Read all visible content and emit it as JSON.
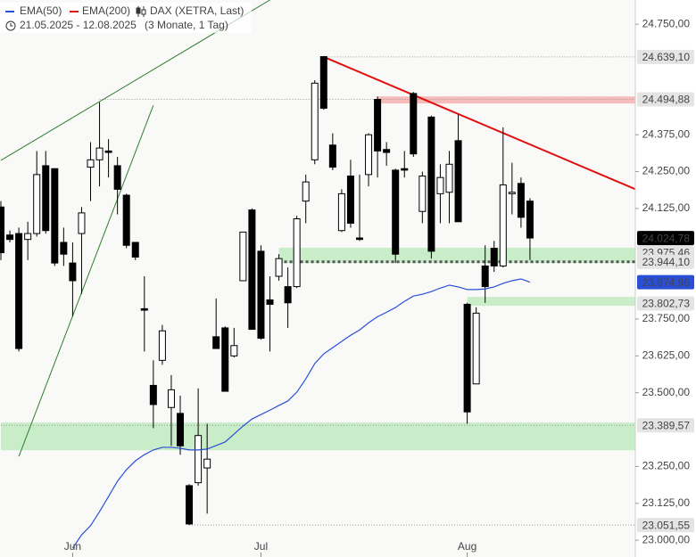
{
  "chart_data": {
    "type": "candlestick",
    "instrument": "DAX (XETRA, Last)",
    "period": "21.05.2025 - 12.08.2025",
    "range": "(3 Monate, 1 Tag)",
    "indicators": [
      {
        "name": "EMA(50)",
        "color": "#2a4fd6"
      },
      {
        "name": "EMA(200)",
        "color": "#e01010"
      }
    ],
    "categories": [
      null,
      null,
      null,
      null,
      null,
      null,
      null,
      null,
      "Jun",
      null,
      null,
      null,
      null,
      null,
      null,
      null,
      null,
      null,
      null,
      null,
      null,
      null,
      null,
      null,
      null,
      null,
      null,
      null,
      null,
      "Jul",
      null,
      null,
      null,
      null,
      null,
      null,
      null,
      null,
      null,
      null,
      null,
      null,
      null,
      null,
      null,
      null,
      null,
      null,
      null,
      null,
      null,
      null,
      "Aug",
      null,
      null,
      null,
      null,
      null,
      null,
      null
    ],
    "open": [
      24130,
      24035,
      24040,
      24020,
      24040,
      24270,
      24260,
      24010,
      23940,
      24040,
      24265,
      24290,
      24320,
      24270,
      24170,
      24010,
      23785,
      23525,
      23610,
      23450,
      23430,
      23185,
      23195,
      23245,
      23690,
      23720,
      23625,
      23880,
      24120,
      23980,
      23815,
      23895,
      23860,
      23860,
      24150,
      24290,
      24640,
      24340,
      24050,
      24235,
      24025,
      24240,
      24495,
      24325,
      24255,
      24260,
      24515,
      24115,
      24435,
      24175,
      24180,
      24355,
      23800,
      23530,
      23930,
      23990,
      23930,
      24175,
      24210,
      24150
    ],
    "high": [
      24150,
      24050,
      24060,
      24080,
      24320,
      24320,
      24260,
      24060,
      24010,
      24130,
      24350,
      24485,
      24360,
      24300,
      24175,
      24010,
      23895,
      23610,
      23730,
      23560,
      23490,
      23190,
      23515,
      23395,
      23820,
      23725,
      23720,
      24045,
      24125,
      24000,
      23895,
      23970,
      23925,
      24100,
      24240,
      24560,
      24639.1,
      24380,
      24190,
      24290,
      24240,
      24380,
      24505,
      24350,
      24260,
      24320,
      24520,
      24250,
      24440,
      24275,
      24320,
      24445,
      23805,
      23790,
      24000,
      24015,
      24400,
      24280,
      24230,
      24160
    ],
    "low": [
      23950,
      24010,
      23640,
      23950,
      24030,
      24040,
      23930,
      23930,
      23760,
      23835,
      24150,
      24200,
      24230,
      24105,
      23990,
      23950,
      23640,
      23380,
      23595,
      23320,
      23290,
      23051.55,
      23185,
      23090,
      23650,
      23505,
      23620,
      23880,
      23715,
      23680,
      23640,
      23880,
      23720,
      23855,
      24075,
      24275,
      24460,
      24255,
      24045,
      24060,
      24015,
      24200,
      24230,
      24270,
      23940,
      24230,
      24300,
      24075,
      23955,
      24075,
      24075,
      24080,
      23395,
      23530,
      23805,
      23910,
      23925,
      24105,
      24060,
      23950
    ],
    "close": [
      23975,
      24020,
      23650,
      24040,
      24240,
      24050,
      23940,
      23970,
      23880,
      24110,
      24290,
      24330,
      24315,
      24190,
      24000,
      23960,
      23780,
      23460,
      23710,
      23510,
      23320,
      23055,
      23355,
      23275,
      23650,
      23505,
      23660,
      24045,
      23715,
      23685,
      23800,
      23955,
      23805,
      24090,
      24215,
      24550,
      24465,
      24265,
      24175,
      24075,
      24020,
      24375,
      24320,
      24315,
      23970,
      24255,
      24310,
      24235,
      23980,
      24230,
      24275,
      24080,
      23435,
      23770,
      23860,
      23930,
      24205,
      24180,
      24095,
      24024.78
    ],
    "series": [
      {
        "name": "EMA(50)",
        "color": "#2a4fd6",
        "values": [
          null,
          null,
          null,
          null,
          null,
          null,
          null,
          null,
          22973,
          23018,
          23049,
          23097,
          23148,
          23200,
          23239,
          23269,
          23290,
          23306,
          23315,
          23315,
          23312,
          23306,
          23306,
          23309,
          23321,
          23333,
          23360,
          23387,
          23411,
          23426,
          23441,
          23457,
          23472,
          23502,
          23547,
          23599,
          23632,
          23653,
          23674,
          23695,
          23713,
          23737,
          23758,
          23773,
          23789,
          23810,
          23828,
          23834,
          23843,
          23855,
          23865,
          23859,
          23850,
          23850,
          23852,
          23859,
          23871,
          23880,
          23886,
          23874.96
        ]
      }
    ],
    "ylim": [
      22943,
      24832
    ],
    "yticks": [
      {
        "value": 24750,
        "label": "24.750,00"
      },
      {
        "value": 24375,
        "label": "24.375,00"
      },
      {
        "value": 24250,
        "label": "24.250,00"
      },
      {
        "value": 24125,
        "label": "24.125,00"
      },
      {
        "value": 23750,
        "label": "23.750,00"
      },
      {
        "value": 23625,
        "label": "23.625,00"
      },
      {
        "value": 23500,
        "label": "23.500,00"
      },
      {
        "value": 23250,
        "label": "23.250,00"
      },
      {
        "value": 23125,
        "label": "23.125,00"
      },
      {
        "value": 23000,
        "label": "23.000,00"
      }
    ],
    "levels": [
      {
        "value": 24639.1,
        "label": "24.639,10",
        "from": 36,
        "line": "dotted",
        "box": "#e4e4e4",
        "text_color": "#333"
      },
      {
        "value": 24494.88,
        "label": "24.494,88",
        "from": 11,
        "line": "dotted",
        "zone": [
          24481,
          24505
        ],
        "zone_from": 42,
        "zone_color": "#f6b0b0",
        "box": "#e4e4e4",
        "text_color": "#333"
      },
      {
        "value": 24024.78,
        "label": "24.024,78",
        "box": "#000000",
        "text_color": "#ffffff"
      },
      {
        "value": 23975.46,
        "label": "23.975,46",
        "box": "#e4e4e4",
        "text_color": "#333"
      },
      {
        "value": 23944.1,
        "label": "23.944,10",
        "from": 31,
        "line": "thick",
        "zone": [
          23940,
          23992
        ],
        "zone_from": 31,
        "zone_color": "#bfeabf",
        "box": "#e4e4e4",
        "text_color": "#333"
      },
      {
        "value": 23874.96,
        "label": "23.874,96",
        "box": "#2a4fd6",
        "text_color": "#ffffff"
      },
      {
        "value": 23802.73,
        "label": "23.802,73",
        "zone": [
          23795,
          23825
        ],
        "zone_from": 52,
        "zone_color": "#bfeabf",
        "box": "#e4e4e4",
        "text_color": "#333"
      },
      {
        "value": 23389.57,
        "label": "23.389,57",
        "from": 0,
        "line": "dotted",
        "zone": [
          23305,
          23399
        ],
        "zone_from": 0,
        "zone_color": "#bfeabf",
        "box": "#e4e4e4",
        "text_color": "#333"
      },
      {
        "value": 23051.55,
        "label": "23.051,55",
        "from": 21,
        "line": "dotted",
        "box": "#e4e4e4",
        "text_color": "#333"
      }
    ],
    "trendlines": [
      {
        "color": "#2e7d2e",
        "width": 1,
        "points": [
          [
            0,
            24288
          ],
          [
            30,
            24832
          ]
        ]
      },
      {
        "color": "#2e7d2e",
        "width": 1,
        "points": [
          [
            2,
            23284
          ],
          [
            17,
            24475
          ]
        ]
      },
      {
        "color": "#e01010",
        "width": 2,
        "points": [
          [
            36,
            24639.1
          ],
          [
            70.7,
            24191
          ]
        ]
      }
    ]
  }
}
